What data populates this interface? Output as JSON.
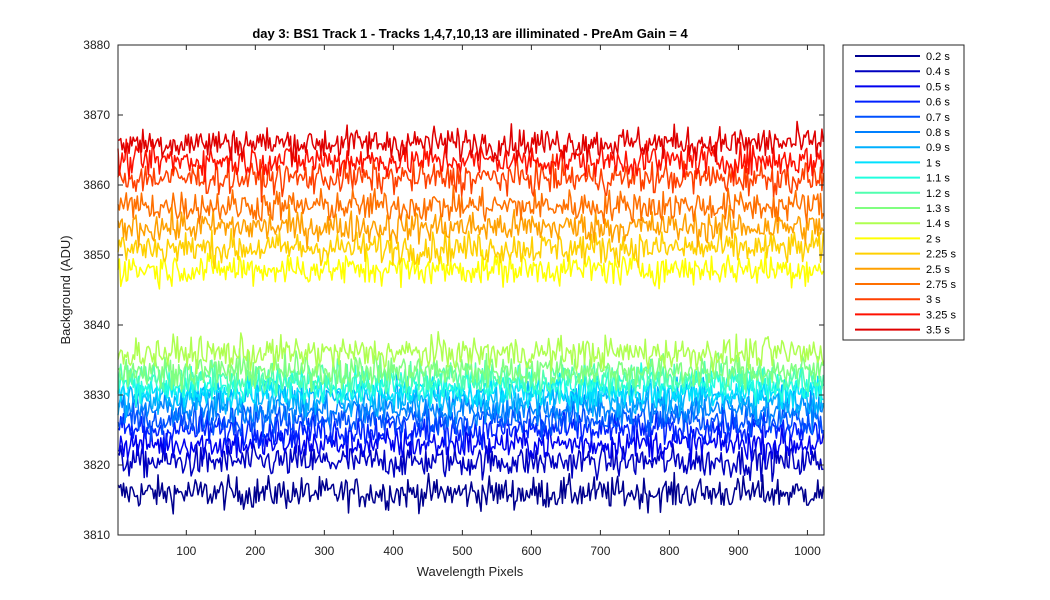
{
  "chart_data": {
    "type": "line",
    "title": "day 3: BS1  Track 1 - Tracks 1,4,7,10,13 are illiminated - PreAm Gain = 4",
    "xlabel": "Wavelength Pixels",
    "ylabel": "Background (ADU)",
    "xlim": [
      1,
      1024
    ],
    "ylim": [
      3810,
      3880
    ],
    "xticks": [
      100,
      200,
      300,
      400,
      500,
      600,
      700,
      800,
      900,
      1000
    ],
    "yticks": [
      3810,
      3820,
      3830,
      3840,
      3850,
      3860,
      3870,
      3880
    ],
    "grid": false,
    "legend_position": "outside-right-top",
    "noise_amplitude_adu": 1.5,
    "series": [
      {
        "name": "0.2 s",
        "color": "#00008F",
        "mean": 3816.0
      },
      {
        "name": "0.4 s",
        "color": "#0000BF",
        "mean": 3820.5
      },
      {
        "name": "0.5 s",
        "color": "#0000EF",
        "mean": 3823.0
      },
      {
        "name": "0.6 s",
        "color": "#0020FF",
        "mean": 3825.0
      },
      {
        "name": "0.7 s",
        "color": "#0050FF",
        "mean": 3826.5
      },
      {
        "name": "0.8 s",
        "color": "#0080FF",
        "mean": 3828.0
      },
      {
        "name": "0.9 s",
        "color": "#00B0FF",
        "mean": 3829.5
      },
      {
        "name": "1 s",
        "color": "#00E0FF",
        "mean": 3830.5
      },
      {
        "name": "1.1 s",
        "color": "#20FFDF",
        "mean": 3831.5
      },
      {
        "name": "1.2 s",
        "color": "#50FFAF",
        "mean": 3832.5
      },
      {
        "name": "1.3 s",
        "color": "#80FF80",
        "mean": 3833.5
      },
      {
        "name": "1.4 s",
        "color": "#AFFF50",
        "mean": 3836.0
      },
      {
        "name": "2 s",
        "color": "#FFFF00",
        "mean": 3848.0
      },
      {
        "name": "2.25 s",
        "color": "#FFD000",
        "mean": 3851.0
      },
      {
        "name": "2.5 s",
        "color": "#FFA000",
        "mean": 3854.0
      },
      {
        "name": "2.75 s",
        "color": "#FF7000",
        "mean": 3857.0
      },
      {
        "name": "3 s",
        "color": "#FF4000",
        "mean": 3861.0
      },
      {
        "name": "3.25 s",
        "color": "#FF1000",
        "mean": 3863.5
      },
      {
        "name": "3.5 s",
        "color": "#DF0000",
        "mean": 3866.0
      }
    ]
  }
}
